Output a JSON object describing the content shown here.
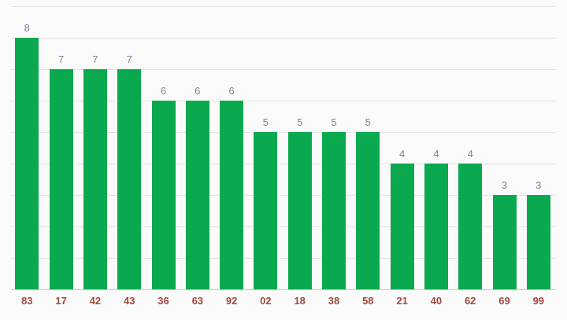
{
  "colors": {
    "background": "#fafafa",
    "bar": "#0ba94f",
    "value_label": "#78889a",
    "x_label": "#a04a40",
    "gridline": "#e3e3e3",
    "baseline": "#c9c9c9"
  },
  "chart_data": {
    "type": "bar",
    "title": "",
    "xlabel": "",
    "ylabel": "",
    "categories": [
      "83",
      "17",
      "42",
      "43",
      "36",
      "63",
      "92",
      "02",
      "18",
      "38",
      "58",
      "21",
      "40",
      "62",
      "69",
      "99"
    ],
    "values": [
      8,
      7,
      7,
      7,
      6,
      6,
      6,
      5,
      5,
      5,
      5,
      4,
      4,
      4,
      3,
      3
    ],
    "value_labels": [
      "8",
      "7",
      "7",
      "7",
      "6",
      "6",
      "6",
      "5",
      "5",
      "5",
      "5",
      "4",
      "4",
      "4",
      "3",
      "3"
    ],
    "ylim": [
      0,
      9
    ],
    "grid": true,
    "legend": "none",
    "y_tick_labels_shown": false,
    "value_labels_shown": true
  }
}
